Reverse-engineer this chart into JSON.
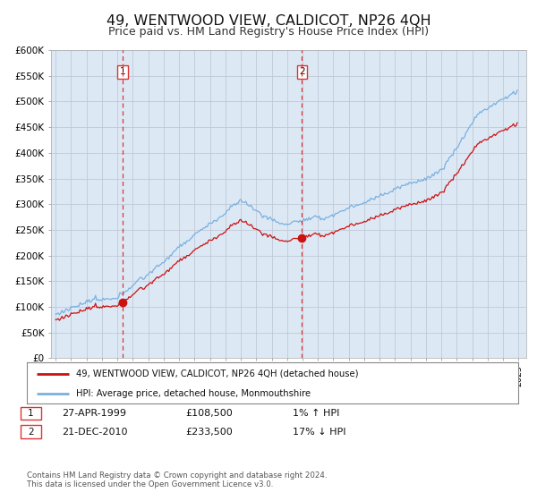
{
  "title": "49, WENTWOOD VIEW, CALDICOT, NP26 4QH",
  "subtitle": "Price paid vs. HM Land Registry's House Price Index (HPI)",
  "title_fontsize": 11.5,
  "subtitle_fontsize": 9,
  "bg_color": "#ffffff",
  "plot_bg_color": "#dce9f5",
  "grid_color": "#c0c8d8",
  "hpi_line_color": "#7ab0e0",
  "price_line_color": "#cc1111",
  "marker_color": "#cc1111",
  "vline_color": "#dd3333",
  "ylim": [
    0,
    600000
  ],
  "yticks": [
    0,
    50000,
    100000,
    150000,
    200000,
    250000,
    300000,
    350000,
    400000,
    450000,
    500000,
    550000,
    600000
  ],
  "ytick_labels": [
    "£0",
    "£50K",
    "£100K",
    "£150K",
    "£200K",
    "£250K",
    "£300K",
    "£350K",
    "£400K",
    "£450K",
    "£500K",
    "£550K",
    "£600K"
  ],
  "xlim_start": 1994.7,
  "xlim_end": 2025.5,
  "purchase1_date": 1999.32,
  "purchase1_price": 108500,
  "purchase2_date": 2010.97,
  "purchase2_price": 233500,
  "legend_entries": [
    "49, WENTWOOD VIEW, CALDICOT, NP26 4QH (detached house)",
    "HPI: Average price, detached house, Monmouthshire"
  ],
  "table_rows": [
    [
      "1",
      "27-APR-1999",
      "£108,500",
      "1% ↑ HPI"
    ],
    [
      "2",
      "21-DEC-2010",
      "£233,500",
      "17% ↓ HPI"
    ]
  ],
  "footnote": "Contains HM Land Registry data © Crown copyright and database right 2024.\nThis data is licensed under the Open Government Licence v3.0."
}
